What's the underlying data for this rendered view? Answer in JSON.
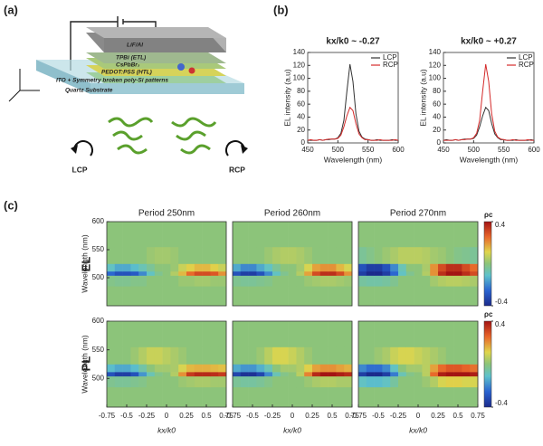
{
  "panel_labels": [
    "(a)",
    "(b)",
    "(c)"
  ],
  "diagram": {
    "layers": [
      "LiF/Al",
      "TPBi (ETL)",
      "CsPbBr₃",
      "PEDOT:PSS (HTL)",
      "ITO + Symmetry broken poly-Si patterns",
      "Quartz Substrate"
    ],
    "left_label": "LCP",
    "right_label": "RCP"
  },
  "row_labels": [
    "EL",
    "PL"
  ],
  "chart_data": [
    {
      "type": "line",
      "title": "kx/k0 ~ -0.27",
      "xlabel": "Wavelength (nm)",
      "ylabel": "EL intensity (a.u)",
      "x": [
        450,
        455,
        460,
        465,
        470,
        475,
        480,
        485,
        490,
        495,
        500,
        505,
        510,
        515,
        520,
        525,
        530,
        535,
        540,
        545,
        550,
        555,
        560,
        565,
        570,
        575,
        580,
        585,
        590,
        595,
        600
      ],
      "series": [
        {
          "name": "LCP",
          "color": "#333333",
          "values": [
            4,
            4,
            4,
            4,
            5,
            4,
            5,
            5,
            6,
            6,
            8,
            15,
            35,
            80,
            122,
            95,
            45,
            18,
            9,
            6,
            5,
            4,
            4,
            5,
            4,
            4,
            4,
            4,
            5,
            4,
            4
          ]
        },
        {
          "name": "RCP",
          "color": "#d42a2a",
          "values": [
            4,
            5,
            4,
            4,
            5,
            4,
            5,
            6,
            6,
            6,
            7,
            12,
            25,
            42,
            55,
            50,
            30,
            14,
            8,
            5,
            5,
            4,
            4,
            4,
            5,
            4,
            4,
            4,
            4,
            5,
            4
          ]
        }
      ],
      "xlim": [
        450,
        600
      ],
      "xticks": [
        450,
        500,
        550,
        600
      ],
      "ylim": [
        0,
        140
      ],
      "yticks": [
        0,
        20,
        40,
        60,
        80,
        100,
        120,
        140
      ],
      "legend": "top-right"
    },
    {
      "type": "line",
      "title": "kx/k0 ~ +0.27",
      "xlabel": "Wavelength (nm)",
      "ylabel": "EL intensity (a.u)",
      "x": [
        450,
        455,
        460,
        465,
        470,
        475,
        480,
        485,
        490,
        495,
        500,
        505,
        510,
        515,
        520,
        525,
        530,
        535,
        540,
        545,
        550,
        555,
        560,
        565,
        570,
        575,
        580,
        585,
        590,
        595,
        600
      ],
      "series": [
        {
          "name": "LCP",
          "color": "#333333",
          "values": [
            4,
            5,
            4,
            4,
            5,
            4,
            5,
            6,
            6,
            6,
            7,
            12,
            25,
            42,
            55,
            50,
            30,
            14,
            8,
            5,
            5,
            4,
            4,
            4,
            5,
            4,
            4,
            4,
            4,
            5,
            4
          ]
        },
        {
          "name": "RCP",
          "color": "#d42a2a",
          "values": [
            4,
            4,
            4,
            4,
            5,
            4,
            5,
            5,
            6,
            6,
            8,
            15,
            35,
            80,
            122,
            95,
            45,
            18,
            9,
            6,
            5,
            4,
            4,
            5,
            4,
            4,
            4,
            4,
            5,
            4,
            4
          ]
        }
      ],
      "xlim": [
        450,
        600
      ],
      "xticks": [
        450,
        500,
        550,
        600
      ],
      "ylim": [
        0,
        140
      ],
      "yticks": [
        0,
        20,
        40,
        60,
        80,
        100,
        120,
        140
      ],
      "legend": "top-right"
    },
    {
      "type": "heatmap",
      "title": "Period 250nm",
      "ylabel": "Wavelength (nm)",
      "yticks": [
        500,
        550,
        600
      ],
      "x": [
        -0.7,
        -0.6,
        -0.5,
        -0.4,
        -0.3,
        -0.2,
        -0.1,
        0,
        0.1,
        0.2,
        0.3,
        0.4,
        0.5,
        0.6,
        0.7
      ],
      "y": [
        470,
        500,
        508,
        515,
        535,
        575
      ],
      "xlim": [
        -0.75,
        0.75
      ],
      "ylim": [
        450,
        600
      ],
      "zlim": [
        -0.4,
        0.4
      ],
      "values": [
        [
          0,
          0,
          0,
          0,
          0,
          0,
          0,
          0,
          0,
          0,
          0,
          0,
          0,
          0,
          0
        ],
        [
          -0.02,
          -0.03,
          -0.03,
          -0.02,
          -0.02,
          0,
          0,
          0,
          0,
          0.02,
          0.02,
          0.03,
          0.03,
          0.02,
          0.02
        ],
        [
          -0.25,
          -0.3,
          -0.3,
          -0.28,
          -0.2,
          -0.1,
          -0.03,
          0,
          0.05,
          0.15,
          0.25,
          0.3,
          0.3,
          0.28,
          0.2
        ],
        [
          -0.1,
          -0.15,
          -0.15,
          -0.12,
          -0.08,
          -0.04,
          0,
          0,
          0.02,
          0.08,
          0.12,
          0.15,
          0.15,
          0.12,
          0.08
        ],
        [
          0,
          0,
          0,
          0,
          0,
          0.02,
          0.03,
          0.03,
          0.02,
          0,
          0,
          0,
          0,
          0,
          0
        ],
        [
          0,
          0,
          0,
          0,
          0,
          0,
          0,
          0,
          0,
          0,
          0,
          0,
          0,
          0,
          0
        ]
      ]
    },
    {
      "type": "heatmap",
      "title": "Period 260nm",
      "x": [
        -0.7,
        -0.6,
        -0.5,
        -0.4,
        -0.3,
        -0.2,
        -0.1,
        0,
        0.1,
        0.2,
        0.3,
        0.4,
        0.5,
        0.6,
        0.7
      ],
      "y": [
        470,
        500,
        508,
        515,
        535,
        575
      ],
      "xlim": [
        -0.75,
        0.75
      ],
      "ylim": [
        450,
        600
      ],
      "zlim": [
        -0.4,
        0.4
      ],
      "values": [
        [
          0,
          0,
          0,
          0,
          0,
          0,
          0,
          0,
          0,
          0,
          0,
          0,
          0,
          0,
          0
        ],
        [
          -0.03,
          -0.04,
          -0.04,
          -0.03,
          -0.02,
          0,
          0,
          0,
          0,
          0.02,
          0.03,
          0.04,
          0.04,
          0.03,
          0.02
        ],
        [
          -0.3,
          -0.35,
          -0.35,
          -0.3,
          -0.2,
          -0.1,
          -0.03,
          0,
          0.05,
          0.18,
          0.3,
          0.35,
          0.35,
          0.3,
          0.2
        ],
        [
          -0.15,
          -0.2,
          -0.2,
          -0.15,
          -0.1,
          -0.04,
          0,
          0,
          0.03,
          0.1,
          0.18,
          0.2,
          0.2,
          0.15,
          0.1
        ],
        [
          0,
          0,
          0,
          0,
          0.02,
          0.04,
          0.05,
          0.05,
          0.04,
          0.02,
          0,
          0,
          0,
          0,
          0
        ],
        [
          0,
          0,
          0,
          0,
          0,
          0,
          0,
          0,
          0,
          0,
          0,
          0,
          0,
          0,
          0
        ]
      ]
    },
    {
      "type": "heatmap",
      "title": "Period 270nm",
      "colorbar_label": "ρc",
      "zticks": [
        0.4,
        -0.4
      ],
      "x": [
        -0.7,
        -0.6,
        -0.5,
        -0.4,
        -0.3,
        -0.2,
        -0.1,
        0,
        0.1,
        0.2,
        0.3,
        0.4,
        0.5,
        0.6,
        0.7
      ],
      "y": [
        470,
        500,
        508,
        515,
        535,
        575
      ],
      "xlim": [
        -0.75,
        0.75
      ],
      "ylim": [
        450,
        600
      ],
      "zlim": [
        -0.4,
        0.4
      ],
      "values": [
        [
          0,
          0,
          0,
          0,
          0,
          0,
          0,
          0,
          0,
          0,
          0,
          0,
          0,
          0,
          0
        ],
        [
          -0.05,
          -0.06,
          -0.06,
          -0.05,
          -0.03,
          0,
          0,
          0,
          0,
          0.03,
          0.05,
          0.06,
          0.06,
          0.05,
          0.04
        ],
        [
          -0.35,
          -0.4,
          -0.4,
          -0.35,
          -0.25,
          -0.1,
          -0.03,
          0,
          0.05,
          0.2,
          0.35,
          0.4,
          0.4,
          0.35,
          0.3
        ],
        [
          -0.3,
          -0.35,
          -0.35,
          -0.3,
          -0.2,
          -0.08,
          0,
          0,
          0.04,
          0.2,
          0.3,
          0.35,
          0.35,
          0.3,
          0.25
        ],
        [
          -0.04,
          -0.02,
          0,
          0.02,
          0.04,
          0.06,
          0.06,
          0.06,
          0.05,
          0.03,
          0.02,
          0,
          -0.02,
          -0.03,
          -0.04
        ],
        [
          0,
          0,
          0,
          0,
          0,
          0,
          0,
          0,
          0,
          0,
          0,
          0,
          0,
          0,
          0
        ]
      ]
    },
    {
      "type": "heatmap",
      "ylabel": "Wavelength (nm)",
      "yticks": [
        500,
        550,
        600
      ],
      "xlabel": "kx/k0",
      "xticks": [
        -0.75,
        -0.5,
        -0.25,
        0,
        0.25,
        0.5,
        0.75
      ],
      "x": [
        -0.7,
        -0.6,
        -0.5,
        -0.4,
        -0.3,
        -0.2,
        -0.1,
        0,
        0.1,
        0.2,
        0.3,
        0.4,
        0.5,
        0.6,
        0.7
      ],
      "y": [
        470,
        500,
        508,
        515,
        535,
        575
      ],
      "xlim": [
        -0.75,
        0.75
      ],
      "ylim": [
        450,
        600
      ],
      "zlim": [
        -0.4,
        0.4
      ],
      "values": [
        [
          0,
          0,
          0,
          0,
          0,
          0,
          0,
          0,
          0,
          0,
          0,
          0,
          0,
          0,
          0
        ],
        [
          -0.03,
          -0.04,
          -0.04,
          -0.03,
          -0.02,
          0,
          0,
          0,
          0,
          0.02,
          0.03,
          0.04,
          0.04,
          0.03,
          0.03
        ],
        [
          -0.3,
          -0.35,
          -0.35,
          -0.3,
          -0.18,
          -0.08,
          -0.02,
          0,
          0.05,
          0.2,
          0.33,
          0.36,
          0.36,
          0.35,
          0.33
        ],
        [
          -0.12,
          -0.15,
          -0.15,
          -0.12,
          -0.06,
          0,
          0.03,
          0.03,
          0.04,
          0.1,
          0.15,
          0.16,
          0.16,
          0.15,
          0.14
        ],
        [
          0,
          0,
          0,
          0.02,
          0.05,
          0.08,
          0.08,
          0.06,
          0.04,
          0.02,
          0,
          0,
          0,
          0,
          0
        ],
        [
          0,
          0,
          0,
          0,
          0,
          0,
          0,
          0,
          0,
          0,
          0,
          0,
          0,
          0,
          0
        ]
      ]
    },
    {
      "type": "heatmap",
      "xlabel": "kx/k0",
      "xticks": [
        -0.75,
        -0.5,
        -0.25,
        0,
        0.25,
        0.5,
        0.75
      ],
      "x": [
        -0.7,
        -0.6,
        -0.5,
        -0.4,
        -0.3,
        -0.2,
        -0.1,
        0,
        0.1,
        0.2,
        0.3,
        0.4,
        0.5,
        0.6,
        0.7
      ],
      "y": [
        470,
        500,
        508,
        515,
        535,
        575
      ],
      "xlim": [
        -0.75,
        0.75
      ],
      "ylim": [
        450,
        600
      ],
      "zlim": [
        -0.4,
        0.4
      ],
      "values": [
        [
          0,
          0,
          0,
          0,
          0,
          0,
          0,
          0,
          0,
          0,
          0,
          0,
          0,
          0,
          0
        ],
        [
          -0.04,
          -0.05,
          -0.05,
          -0.04,
          -0.02,
          0,
          0,
          0,
          0,
          0.02,
          0.04,
          0.05,
          0.05,
          0.04,
          0.04
        ],
        [
          -0.33,
          -0.38,
          -0.38,
          -0.33,
          -0.2,
          -0.08,
          -0.02,
          0,
          0.06,
          0.22,
          0.36,
          0.4,
          0.4,
          0.38,
          0.36
        ],
        [
          -0.15,
          -0.18,
          -0.18,
          -0.14,
          -0.08,
          0,
          0.03,
          0.03,
          0.05,
          0.12,
          0.18,
          0.2,
          0.2,
          0.18,
          0.16
        ],
        [
          0,
          0,
          0,
          0.02,
          0.06,
          0.1,
          0.1,
          0.08,
          0.05,
          0.02,
          0,
          0,
          0,
          0,
          0
        ],
        [
          0,
          0,
          0,
          0,
          0,
          0,
          0,
          0,
          0,
          0,
          0,
          0,
          0,
          0,
          0
        ]
      ]
    },
    {
      "type": "heatmap",
      "xlabel": "kx/k0",
      "xticks": [
        -0.75,
        -0.5,
        -0.25,
        0,
        0.25,
        0.5,
        0.75
      ],
      "colorbar_label": "ρc",
      "zticks": [
        0.4,
        -0.4
      ],
      "x": [
        -0.7,
        -0.6,
        -0.5,
        -0.4,
        -0.3,
        -0.2,
        -0.1,
        0,
        0.1,
        0.2,
        0.3,
        0.4,
        0.5,
        0.6,
        0.7
      ],
      "y": [
        470,
        500,
        508,
        515,
        535,
        575
      ],
      "xlim": [
        -0.75,
        0.75
      ],
      "ylim": [
        450,
        600
      ],
      "zlim": [
        -0.4,
        0.4
      ],
      "values": [
        [
          0,
          0,
          0,
          0,
          0,
          0,
          0,
          0,
          0,
          0,
          0,
          0,
          0,
          0,
          0
        ],
        [
          -0.1,
          -0.12,
          -0.12,
          -0.1,
          -0.05,
          0,
          0,
          0,
          0.02,
          0.05,
          0.1,
          0.12,
          0.12,
          0.1,
          0.1
        ],
        [
          -0.35,
          -0.4,
          -0.4,
          -0.35,
          -0.22,
          -0.08,
          -0.02,
          0,
          0.06,
          0.25,
          0.38,
          0.4,
          0.4,
          0.4,
          0.38
        ],
        [
          -0.2,
          -0.24,
          -0.24,
          -0.2,
          -0.1,
          0,
          0.03,
          0.03,
          0.06,
          0.18,
          0.25,
          0.28,
          0.28,
          0.26,
          0.24
        ],
        [
          0,
          0,
          0.02,
          0.04,
          0.08,
          0.1,
          0.1,
          0.08,
          0.06,
          0.04,
          0.02,
          0,
          0,
          0,
          0
        ],
        [
          0,
          0,
          0,
          0,
          0,
          0,
          0,
          0,
          0,
          0,
          0,
          0,
          0,
          0,
          0
        ]
      ]
    }
  ]
}
